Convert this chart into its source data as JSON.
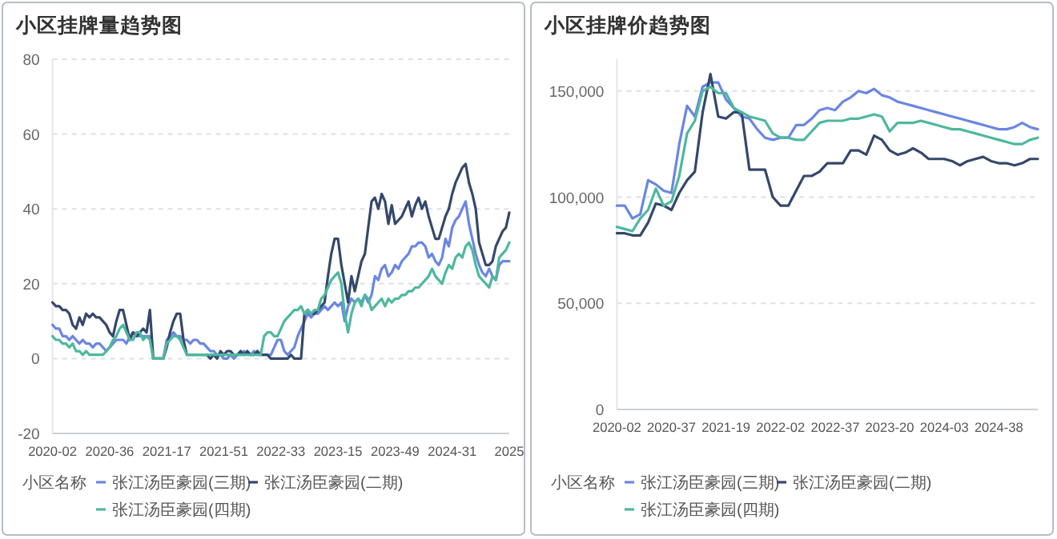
{
  "chart_data": [
    {
      "type": "line",
      "title": "小区挂牌量趋势图",
      "legend_title": "小区名称",
      "legend": "bottom",
      "grid": "y",
      "marker": "none",
      "line_style": "solid",
      "ylim": [
        -20,
        80
      ],
      "yticks": [
        -20,
        0,
        20,
        40,
        60,
        80
      ],
      "categories": [
        "2020-02",
        null,
        null,
        null,
        null,
        null,
        null,
        null,
        null,
        null,
        null,
        null,
        null,
        null,
        null,
        null,
        null,
        "2020-36",
        null,
        null,
        null,
        null,
        null,
        null,
        null,
        null,
        null,
        null,
        null,
        null,
        null,
        null,
        null,
        null,
        "2021-17",
        null,
        null,
        null,
        null,
        null,
        null,
        null,
        null,
        null,
        null,
        null,
        null,
        null,
        null,
        null,
        null,
        "2021-51",
        null,
        null,
        null,
        null,
        null,
        null,
        null,
        null,
        null,
        null,
        null,
        null,
        null,
        null,
        null,
        null,
        "2022-33",
        null,
        null,
        null,
        null,
        null,
        null,
        null,
        null,
        null,
        null,
        null,
        null,
        null,
        null,
        null,
        null,
        "2023-15",
        null,
        null,
        null,
        null,
        null,
        null,
        null,
        null,
        null,
        null,
        null,
        null,
        null,
        null,
        null,
        null,
        "2023-49",
        null,
        null,
        null,
        null,
        null,
        null,
        null,
        null,
        null,
        null,
        null,
        null,
        null,
        null,
        null,
        null,
        "2024-31",
        null,
        null,
        null,
        null,
        null,
        null,
        null,
        null,
        null,
        null,
        null,
        null,
        null,
        null,
        null,
        null,
        "2025"
      ],
      "series": [
        {
          "name": "张江汤臣豪园(三期)",
          "color": "#6a86e3",
          "values": [
            9,
            8,
            8,
            6,
            6,
            5,
            6,
            5,
            4,
            5,
            4,
            4,
            3,
            4,
            4,
            3,
            2,
            3,
            4,
            5,
            5,
            5,
            4,
            6,
            7,
            6,
            6,
            6,
            6,
            6,
            0,
            0,
            0,
            0,
            5,
            6,
            7,
            6,
            6,
            5,
            5,
            4,
            5,
            5,
            4,
            4,
            3,
            2,
            2,
            1,
            1,
            0,
            0,
            1,
            0,
            1,
            1,
            2,
            1,
            1,
            2,
            1,
            1,
            1,
            1,
            1,
            3,
            5,
            5,
            2,
            1,
            2,
            3,
            6,
            8,
            10,
            12,
            11,
            12,
            12,
            13,
            14,
            13,
            14,
            15,
            14,
            15,
            10,
            14,
            16,
            15,
            16,
            15,
            17,
            15,
            17,
            22,
            21,
            24,
            25,
            22,
            23,
            25,
            24,
            26,
            27,
            28,
            30,
            30,
            31,
            31,
            30,
            27,
            28,
            26,
            25,
            27,
            32,
            30,
            35,
            37,
            38,
            40,
            42,
            36,
            32,
            28,
            25,
            23,
            22,
            24,
            22,
            21,
            25,
            26,
            26,
            26
          ]
        },
        {
          "name": "张江汤臣豪园(二期)",
          "color": "#34486b",
          "values": [
            15,
            14,
            14,
            13,
            13,
            12,
            9,
            8,
            11,
            9,
            12,
            11,
            12,
            11,
            11,
            10,
            9,
            7,
            6,
            10,
            13,
            13,
            9,
            5,
            7,
            6,
            7,
            8,
            7,
            13,
            0,
            0,
            0,
            0,
            3,
            7,
            10,
            12,
            12,
            5,
            1,
            1,
            1,
            1,
            1,
            1,
            1,
            0,
            1,
            0,
            2,
            1,
            2,
            2,
            1,
            1,
            2,
            1,
            2,
            1,
            1,
            2,
            1,
            1,
            1,
            0,
            0,
            0,
            0,
            0,
            0,
            1,
            0,
            0,
            0,
            12,
            13,
            12,
            12,
            13,
            14,
            15,
            22,
            28,
            32,
            32,
            25,
            20,
            15,
            22,
            18,
            22,
            26,
            28,
            35,
            42,
            43,
            40,
            44,
            42,
            36,
            41,
            36,
            37,
            38,
            40,
            42,
            38,
            41,
            43,
            40,
            42,
            38,
            35,
            32,
            32,
            35,
            38,
            40,
            44,
            47,
            49,
            51,
            52,
            47,
            44,
            40,
            31,
            28,
            25,
            25,
            26,
            30,
            32,
            34,
            35,
            39
          ]
        },
        {
          "name": "张江汤臣豪园(四期)",
          "color": "#4db89e",
          "values": [
            6,
            5,
            5,
            4,
            4,
            3,
            4,
            2,
            2,
            1,
            2,
            1,
            1,
            1,
            1,
            1,
            2,
            3,
            5,
            6,
            8,
            9,
            7,
            5,
            5,
            7,
            7,
            5,
            6,
            5,
            0,
            0,
            0,
            0,
            4,
            5,
            6,
            6,
            5,
            3,
            1,
            1,
            1,
            1,
            1,
            1,
            1,
            1,
            1,
            1,
            1,
            1,
            1,
            1,
            1,
            1,
            1,
            1,
            1,
            1,
            1,
            1,
            1,
            6,
            7,
            7,
            6,
            6,
            8,
            10,
            11,
            12,
            13,
            13,
            14,
            12,
            13,
            12,
            13,
            13,
            16,
            17,
            19,
            21,
            22,
            23,
            20,
            12,
            7,
            12,
            15,
            16,
            14,
            17,
            16,
            13,
            14,
            15,
            16,
            14,
            16,
            15,
            16,
            16,
            17,
            17,
            18,
            18,
            19,
            19,
            20,
            21,
            22,
            24,
            22,
            21,
            20,
            23,
            25,
            24,
            27,
            28,
            27,
            30,
            31,
            29,
            25,
            22,
            21,
            20,
            19,
            22,
            21,
            27,
            28,
            29,
            31
          ]
        }
      ]
    },
    {
      "type": "line",
      "title": "小区挂牌价趋势图",
      "legend_title": "小区名称",
      "legend": "bottom",
      "grid": "y",
      "marker": "none",
      "line_style": "solid",
      "ylim": [
        0,
        165000
      ],
      "yticks": [
        0,
        {
          "value": 50000,
          "label": "50,000"
        },
        {
          "value": 100000,
          "label": "100,000"
        },
        {
          "value": 150000,
          "label": "150,000"
        }
      ],
      "categories": [
        "2020-02",
        null,
        null,
        null,
        null,
        null,
        null,
        "2020-37",
        null,
        null,
        null,
        null,
        null,
        null,
        "2021-19",
        null,
        null,
        null,
        null,
        null,
        null,
        "2022-02",
        null,
        null,
        null,
        null,
        null,
        null,
        "2022-37",
        null,
        null,
        null,
        null,
        null,
        null,
        "2023-20",
        null,
        null,
        null,
        null,
        null,
        null,
        "2024-03",
        null,
        null,
        null,
        null,
        null,
        null,
        "2024-38",
        null,
        null,
        null,
        null,
        null
      ],
      "series": [
        {
          "name": "张江汤臣豪园(三期)",
          "color": "#6a86e3",
          "values": [
            96000,
            96000,
            90000,
            92000,
            108000,
            106000,
            103000,
            102000,
            125000,
            143000,
            138000,
            152000,
            154000,
            154000,
            146000,
            142000,
            138000,
            137000,
            132000,
            128000,
            127000,
            128000,
            128000,
            134000,
            134000,
            137000,
            141000,
            142000,
            141000,
            145000,
            147000,
            150000,
            149000,
            151000,
            148000,
            147000,
            145000,
            144000,
            143000,
            142000,
            141000,
            140000,
            139000,
            138000,
            137000,
            136000,
            135000,
            134000,
            133000,
            132000,
            132000,
            133000,
            135000,
            133000,
            132000
          ]
        },
        {
          "name": "张江汤臣豪园(二期)",
          "color": "#34486b",
          "values": [
            83000,
            83000,
            82000,
            82000,
            88000,
            97000,
            96000,
            94000,
            102000,
            108000,
            112000,
            140000,
            158000,
            138000,
            137000,
            140000,
            140000,
            113000,
            113000,
            113000,
            100000,
            96000,
            96000,
            103000,
            110000,
            110000,
            112000,
            116000,
            116000,
            116000,
            122000,
            122000,
            120000,
            129000,
            127000,
            122000,
            120000,
            121000,
            123000,
            121000,
            118000,
            118000,
            118000,
            117000,
            115000,
            117000,
            118000,
            119000,
            117000,
            116000,
            116000,
            115000,
            116000,
            118000,
            118000
          ]
        },
        {
          "name": "张江汤臣豪园(四期)",
          "color": "#4db89e",
          "values": [
            86000,
            85000,
            84000,
            90000,
            94000,
            104000,
            96000,
            98000,
            110000,
            130000,
            136000,
            150000,
            152000,
            149000,
            149000,
            142000,
            140000,
            138000,
            137000,
            136000,
            130000,
            128000,
            128000,
            127000,
            127000,
            131000,
            135000,
            136000,
            136000,
            136000,
            137000,
            137000,
            138000,
            139000,
            138000,
            131000,
            135000,
            135000,
            135000,
            136000,
            135000,
            134000,
            133000,
            132000,
            132000,
            131000,
            130000,
            129000,
            128000,
            127000,
            126000,
            125000,
            125000,
            127000,
            128000
          ]
        }
      ]
    }
  ]
}
